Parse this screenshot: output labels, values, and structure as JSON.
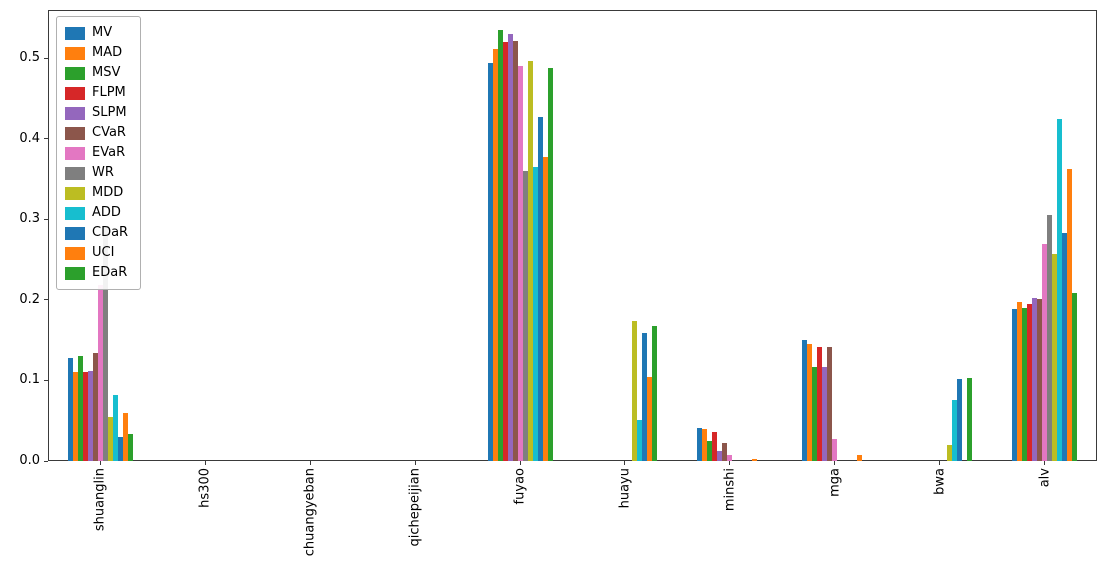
{
  "chart_data": {
    "type": "bar",
    "title": "",
    "xlabel": "",
    "ylabel": "",
    "grid": false,
    "legend_position": "upper left",
    "ylim": [
      0,
      0.56
    ],
    "yticks": [
      0.0,
      0.1,
      0.2,
      0.3,
      0.4,
      0.5
    ],
    "ytick_labels": [
      "0.0",
      "0.1",
      "0.2",
      "0.3",
      "0.4",
      "0.5"
    ],
    "bar_group_fraction": 0.62,
    "categories": [
      "shuanglin",
      "hs300",
      "chuangyeban",
      "qichepeijian",
      "fuyao",
      "huayu",
      "minshi",
      "mga",
      "bwa",
      "alv"
    ],
    "series": [
      {
        "name": "MV",
        "color": "#1f77b4",
        "values": [
          0.128,
          0,
          0,
          0,
          0.494,
          0,
          0.041,
          0.15,
          0,
          0.189
        ]
      },
      {
        "name": "MAD",
        "color": "#ff7f0e",
        "values": [
          0.11,
          0,
          0,
          0,
          0.512,
          0,
          0.04,
          0.145,
          0,
          0.198
        ]
      },
      {
        "name": "MSV",
        "color": "#2ca02c",
        "values": [
          0.13,
          0,
          0,
          0,
          0.535,
          0,
          0.025,
          0.117,
          0,
          0.19
        ]
      },
      {
        "name": "FLPM",
        "color": "#d62728",
        "values": [
          0.11,
          0,
          0,
          0,
          0.52,
          0,
          0.036,
          0.141,
          0,
          0.195
        ]
      },
      {
        "name": "SLPM",
        "color": "#9467bd",
        "values": [
          0.112,
          0,
          0,
          0,
          0.53,
          0,
          0.012,
          0.117,
          0,
          0.203
        ]
      },
      {
        "name": "CVaR",
        "color": "#8c564b",
        "values": [
          0.134,
          0,
          0,
          0,
          0.521,
          0,
          0.022,
          0.141,
          0,
          0.201
        ]
      },
      {
        "name": "EVaR",
        "color": "#e377c2",
        "values": [
          0.218,
          0,
          0,
          0,
          0.491,
          0,
          0.008,
          0.027,
          0,
          0.27
        ]
      },
      {
        "name": "WR",
        "color": "#7f7f7f",
        "values": [
          0.29,
          0,
          0,
          0,
          0.36,
          0,
          0,
          0,
          0,
          0.305
        ]
      },
      {
        "name": "MDD",
        "color": "#bcbd22",
        "values": [
          0.055,
          0,
          0,
          0,
          0.497,
          0.174,
          0,
          0,
          0.02,
          0.257
        ]
      },
      {
        "name": "ADD",
        "color": "#17becf",
        "values": [
          0.082,
          0,
          0,
          0,
          0.365,
          0.051,
          0,
          0,
          0.076,
          0.425
        ]
      },
      {
        "name": "CDaR",
        "color": "#1f77b4",
        "values": [
          0.03,
          0,
          0,
          0,
          0.427,
          0.159,
          0,
          0,
          0.102,
          0.283
        ]
      },
      {
        "name": "UCI",
        "color": "#ff7f0e",
        "values": [
          0.06,
          0,
          0,
          0,
          0.377,
          0.104,
          0.002,
          0.007,
          0,
          0.363
        ]
      },
      {
        "name": "EDaR",
        "color": "#2ca02c",
        "values": [
          0.033,
          0,
          0,
          0,
          0.488,
          0.168,
          0,
          0,
          0.103,
          0.209
        ]
      }
    ]
  }
}
